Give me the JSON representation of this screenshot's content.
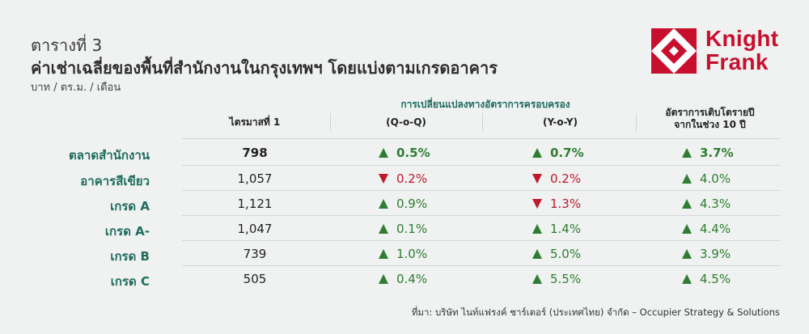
{
  "header": {
    "table_number": "ตารางที่ 3",
    "title": "ค่าเช่าเฉลี่ยของพื้นที่สำนักงานในกรุงเทพฯ โดยแบ่งตามเกรดอาคาร",
    "unit": "บาท / ตร.ม. / เดือน"
  },
  "logo": {
    "line1": "Knight",
    "line2": "Frank",
    "color": "#c8102e"
  },
  "columns": {
    "group_label": "การเปลี่ยนแปลงทางอัตราการครอบครอง",
    "quarter": "ไตรมาสที่ 1",
    "qoq": "(Q-o-Q)",
    "yoy": "(Y-o-Y)",
    "cagr_line1": "อัตราการเติบโตรายปี",
    "cagr_line2": "จากในช่วง 10 ปี"
  },
  "colors": {
    "up": "#2f7d32",
    "down": "#c0182e",
    "label": "#1f6b5e"
  },
  "rows": [
    {
      "label": "ตลาดสำนักงาน",
      "quarter": "798",
      "qoq": "0.5%",
      "qoq_dir": "up",
      "yoy": "0.7%",
      "yoy_dir": "up",
      "cagr": "3.7%",
      "cagr_dir": "up"
    },
    {
      "label": "อาคารสีเขียว",
      "quarter": "1,057",
      "qoq": "0.2%",
      "qoq_dir": "down",
      "yoy": "0.2%",
      "yoy_dir": "down",
      "cagr": "4.0%",
      "cagr_dir": "up"
    },
    {
      "label": "เกรด A",
      "quarter": "1,121",
      "qoq": "0.9%",
      "qoq_dir": "up",
      "yoy": "1.3%",
      "yoy_dir": "down",
      "cagr": "4.3%",
      "cagr_dir": "up"
    },
    {
      "label": "เกรด A-",
      "quarter": "1,047",
      "qoq": "0.1%",
      "qoq_dir": "up",
      "yoy": "1.4%",
      "yoy_dir": "up",
      "cagr": "4.4%",
      "cagr_dir": "up"
    },
    {
      "label": "เกรด B",
      "quarter": "739",
      "qoq": "1.0%",
      "qoq_dir": "up",
      "yoy": "5.0%",
      "yoy_dir": "up",
      "cagr": "3.9%",
      "cagr_dir": "up"
    },
    {
      "label": "เกรด C",
      "quarter": "505",
      "qoq": "0.4%",
      "qoq_dir": "up",
      "yoy": "5.5%",
      "yoy_dir": "up",
      "cagr": "4.5%",
      "cagr_dir": "up"
    }
  ],
  "source": "ที่มา: บริษัท ไนท์แฟรงค์ ชาร์เตอร์ (ประเทศไทย) จำกัด – Occupier Strategy & Solutions"
}
